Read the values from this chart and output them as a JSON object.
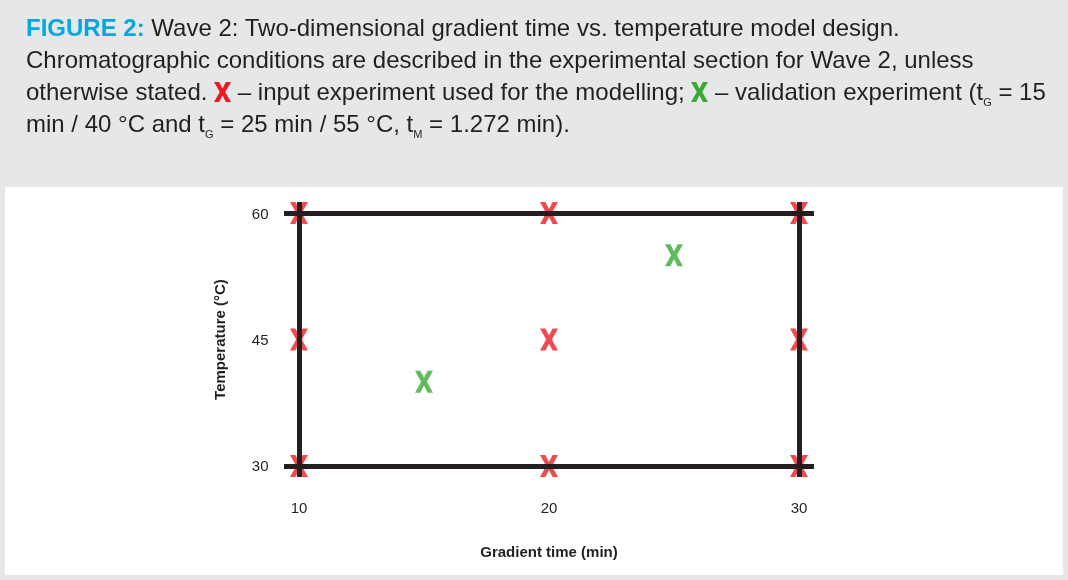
{
  "chart_data": {
    "type": "scatter",
    "title": "FIGURE 2:",
    "subtitle": "Wave 2: Two-dimensional gradient time vs. temperature model design. Chromatographic conditions are described in the experimental section for Wave 2, unless otherwise stated.",
    "xlabel": "Gradient time (min)",
    "ylabel": "Temperature (°C)",
    "xlim": [
      9.5,
      30.5
    ],
    "xticks": [
      10,
      20,
      30
    ],
    "ylim": [
      29,
      61
    ],
    "yticks": [
      30,
      45,
      60
    ],
    "grid": false,
    "marker": "cross",
    "ref_lines": [
      {
        "axis": "y",
        "value": 30,
        "color": "#231f20"
      },
      {
        "axis": "y",
        "value": 60,
        "color": "#231f20"
      },
      {
        "axis": "x",
        "value": 10,
        "color": "#231f20"
      },
      {
        "axis": "x",
        "value": 30,
        "color": "#231f20"
      }
    ],
    "series": [
      {
        "name": "– input experiment used for the modelling;",
        "color": "#ed1c24",
        "x": [
          10,
          10,
          10,
          20,
          20,
          20,
          30,
          30,
          30
        ],
        "values": [
          30,
          45,
          60,
          30,
          45,
          60,
          30,
          45,
          60
        ]
      },
      {
        "name": "– validation experiment (t$_{G}$ = 15 min / 40 °C and t$_{G}$ = 25 min / 55 °C, t$_{M}$ = 1.272 min).",
        "color": "#3aaa35",
        "x": [
          15,
          25
        ],
        "values": [
          40,
          55
        ]
      }
    ]
  }
}
